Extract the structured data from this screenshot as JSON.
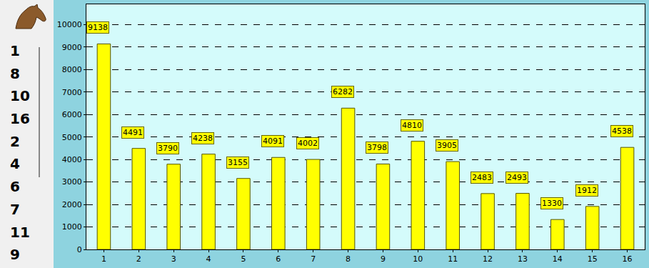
{
  "chart_data": {
    "type": "bar",
    "categories": [
      "1",
      "2",
      "3",
      "4",
      "5",
      "6",
      "7",
      "8",
      "9",
      "10",
      "11",
      "12",
      "13",
      "14",
      "15",
      "16"
    ],
    "values": [
      9138,
      4491,
      3790,
      4238,
      3155,
      4091,
      4002,
      6282,
      3798,
      4810,
      3905,
      2483,
      2493,
      1330,
      1912,
      4538
    ],
    "color": "#ffff00",
    "ylim": [
      0,
      10900
    ],
    "yticks": [
      0,
      1000,
      2000,
      3000,
      4000,
      5000,
      6000,
      7000,
      8000,
      9000,
      10000
    ],
    "grid": true,
    "data_labels": true
  },
  "sidebar": {
    "items": [
      "1",
      "8",
      "10",
      "16",
      "2",
      "4",
      "6",
      "7",
      "11",
      "9"
    ]
  }
}
